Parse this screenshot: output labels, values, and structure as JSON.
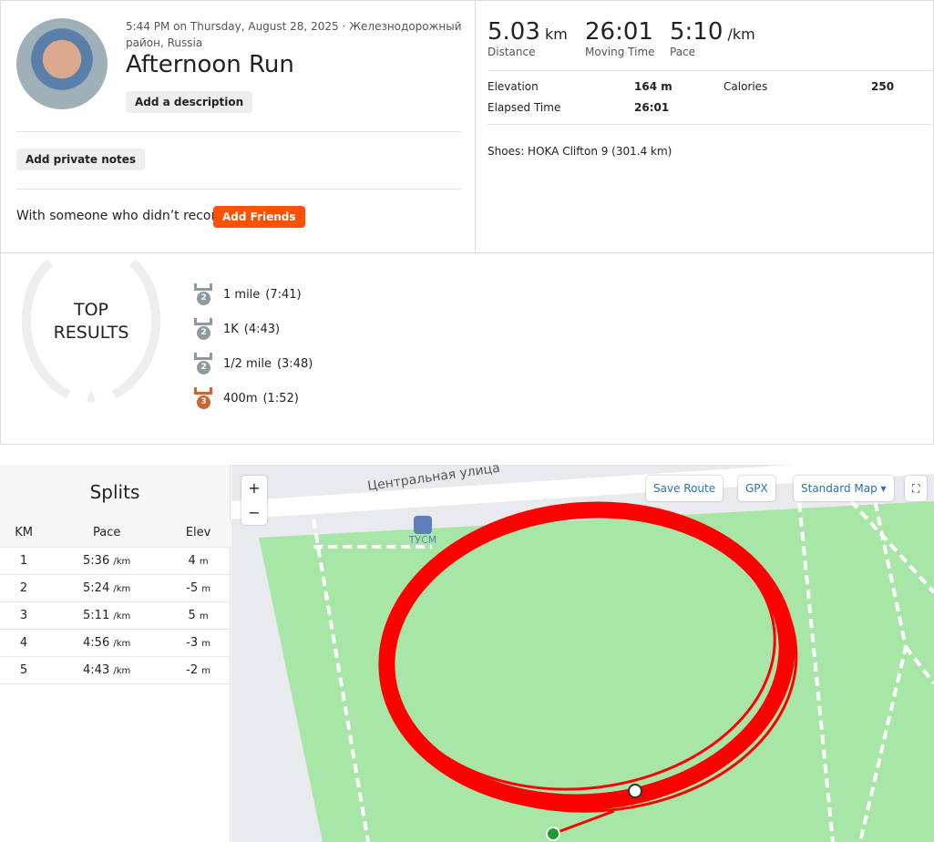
{
  "header": {
    "datetime": "5:44 PM on Thursday, August 28, 2025",
    "separator": "·",
    "location": "Железнодорожный район, Russia",
    "title": "Afternoon Run",
    "add_description": "Add a description",
    "add_private_notes": "Add private notes",
    "with_someone": "With someone who didn’t record?",
    "add_friends": "Add Friends"
  },
  "stats": {
    "primary": [
      {
        "value": "5.03",
        "unit": "km",
        "label": "Distance"
      },
      {
        "value": "26:01",
        "label": "Moving Time"
      },
      {
        "value": "5:10",
        "unit": "/km",
        "label": "Pace"
      }
    ],
    "elevation": {
      "label": "Elevation",
      "value": "164 m"
    },
    "calories": {
      "label": "Calories",
      "value": "250"
    },
    "elapsed": {
      "label": "Elapsed Time",
      "value": "26:01"
    },
    "shoes": "Shoes: HOKA Clifton 9 (301.4 km)"
  },
  "top_results": {
    "title_line1": "TOP",
    "title_line2": "RESULTS",
    "items": [
      {
        "rank": "2",
        "name": "1 mile",
        "time": "(7:41)"
      },
      {
        "rank": "2",
        "name": "1K",
        "time": "(4:43)"
      },
      {
        "rank": "2",
        "name": "1/2 mile",
        "time": "(3:48)"
      },
      {
        "rank": "3",
        "name": "400m",
        "time": "(1:52)"
      }
    ]
  },
  "splits": {
    "title": "Splits",
    "headers": [
      "KM",
      "Pace",
      "Elev"
    ],
    "rows": [
      {
        "km": 1,
        "pace": "5:36",
        "pace_unit": "/km",
        "elev": 4,
        "elev_unit": "m"
      },
      {
        "km": 2,
        "pace": "5:24",
        "pace_unit": "/km",
        "elev": -5,
        "elev_unit": "m"
      },
      {
        "km": 3,
        "pace": "5:11",
        "pace_unit": "/km",
        "elev": 5,
        "elev_unit": "m"
      },
      {
        "km": 4,
        "pace": "4:56",
        "pace_unit": "/km",
        "elev": -3,
        "elev_unit": "m"
      },
      {
        "km": 5,
        "pace": "4:43",
        "pace_unit": "/km",
        "elev": -2,
        "elev_unit": "m"
      }
    ]
  },
  "map": {
    "zoom_in": "+",
    "zoom_out": "−",
    "save_route": "Save Route",
    "gpx": "GPX",
    "standard_map": "Standard Map",
    "street": "Центральная улица",
    "stop": "ТУСМ"
  }
}
